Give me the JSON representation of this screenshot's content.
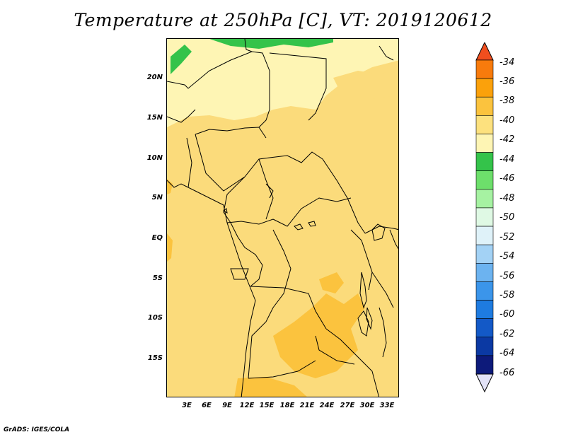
{
  "title": "Temperature at 250hPa [C], VT: 2019120612",
  "footer": "GrADS: IGES/COLA",
  "latitude_labels": [
    "20N",
    "15N",
    "10N",
    "5N",
    "EQ",
    "5S",
    "10S",
    "15S"
  ],
  "longitude_labels": [
    "3E",
    "6E",
    "9E",
    "12E",
    "15E",
    "18E",
    "21E",
    "24E",
    "27E",
    "30E",
    "33E"
  ],
  "colorbar": {
    "labels": [
      "-34",
      "-36",
      "-38",
      "-40",
      "-42",
      "-44",
      "-46",
      "-48",
      "-50",
      "-52",
      "-54",
      "-56",
      "-58",
      "-60",
      "-62",
      "-64",
      "-66"
    ],
    "colors": [
      "#f04e1e",
      "#f87b0c",
      "#fba10b",
      "#fbc33e",
      "#fde17e",
      "#fef5b4",
      "#34c34a",
      "#6ddf6b",
      "#a6f2a2",
      "#dff9e4",
      "#dff2f9",
      "#a3d2f5",
      "#6cb3f0",
      "#3b95ea",
      "#1e7be0",
      "#1359c7",
      "#0b39a3",
      "#0d1a7a",
      "#e2e2f7"
    ]
  },
  "map_colors": {
    "land_base": "#fbdb7b",
    "cooler": "#fef5b4",
    "warmer": "#fbc33e",
    "cold_green": "#34c34a",
    "border": "#000000"
  }
}
